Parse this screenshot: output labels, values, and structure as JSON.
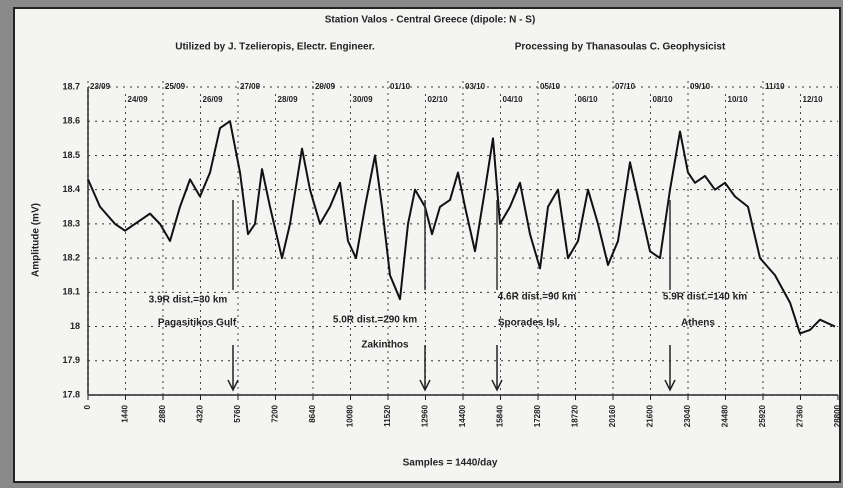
{
  "chart_data": {
    "type": "line",
    "title": "Station Valos - Central Greece (dipole: N - S)",
    "subtitle": [
      "Utilized by J. Tzelieropis, Electr. Engineer.",
      "Processing by Thanasoulas C. Geophysicist"
    ],
    "y_label": "Amplitude (mV)",
    "x_label": "Samples = 1440/day",
    "xlim": [
      0,
      28800
    ],
    "xticks": [
      0,
      1440,
      2880,
      4320,
      5760,
      7200,
      8640,
      10080,
      11520,
      12960,
      14400,
      15840,
      17280,
      18720,
      20160,
      21600,
      23040,
      24480,
      25920,
      27360,
      28800
    ],
    "ylim": [
      17.8,
      18.7
    ],
    "yticks": [
      17.8,
      17.9,
      18,
      18.1,
      18.2,
      18.3,
      18.4,
      18.5,
      18.6,
      18.7
    ],
    "grid": true,
    "dates": [
      "23/09",
      "24/09",
      "25/09",
      "26/09",
      "27/09",
      "28/09",
      "29/09",
      "30/09",
      "01/10",
      "02/10",
      "03/10",
      "04/10",
      "05/10",
      "06/10",
      "07/10",
      "08/10",
      "09/10",
      "10/10",
      "11/10",
      "12/10"
    ],
    "x": [
      0,
      461,
      1037,
      1421,
      1997,
      2381,
      2765,
      3149,
      3533,
      3917,
      4301,
      4685,
      5069,
      5453,
      5837,
      6144,
      6413,
      6682,
      6989,
      7450,
      7757,
      8218,
      8525,
      8909,
      9293,
      9677,
      9984,
      10291,
      10637,
      11021,
      11290,
      11597,
      11981,
      12288,
      12557,
      12941,
      13210,
      13517,
      13901,
      14208,
      14477,
      14861,
      15245,
      15552,
      15821,
      16205,
      16589,
      16973,
      17357,
      17664,
      18048,
      18432,
      18816,
      19200,
      19584,
      19968,
      20352,
      20813,
      21197,
      21581,
      21965,
      22349,
      22733,
      23040,
      23309,
      23693,
      24077,
      24461,
      24845,
      25344,
      25805,
      26381,
      26957,
      27341,
      27725,
      28109,
      28685
    ],
    "series": [
      {
        "color": "#111111",
        "values": [
          18.43,
          18.35,
          18.3,
          18.28,
          18.31,
          18.33,
          18.3,
          18.25,
          18.35,
          18.43,
          18.38,
          18.45,
          18.58,
          18.6,
          18.45,
          18.27,
          18.3,
          18.46,
          18.35,
          18.2,
          18.3,
          18.52,
          18.4,
          18.3,
          18.35,
          18.42,
          18.25,
          18.2,
          18.35,
          18.5,
          18.35,
          18.15,
          18.08,
          18.3,
          18.4,
          18.35,
          18.27,
          18.35,
          18.37,
          18.45,
          18.35,
          18.22,
          18.4,
          18.55,
          18.3,
          18.35,
          18.42,
          18.27,
          18.17,
          18.35,
          18.4,
          18.2,
          18.25,
          18.4,
          18.3,
          18.18,
          18.25,
          18.48,
          18.35,
          18.22,
          18.2,
          18.4,
          18.57,
          18.45,
          18.42,
          18.44,
          18.4,
          18.42,
          18.38,
          18.35,
          18.2,
          18.15,
          18.07,
          17.98,
          17.99,
          18.02,
          18.0
        ]
      }
    ],
    "events": [
      {
        "x": 5568,
        "magnitude": "3.9R dist.=30 km",
        "place": "Pagasitikos Gulf"
      },
      {
        "x": 12941,
        "magnitude": "5.0R dist.=290 km",
        "place": "Zakinthos"
      },
      {
        "x": 15706,
        "magnitude": "4.6R dist.=90 km",
        "place": "Sporades Isl."
      },
      {
        "x": 22349,
        "magnitude": "5.9R dist.=140 km",
        "place": "Athens"
      }
    ]
  }
}
